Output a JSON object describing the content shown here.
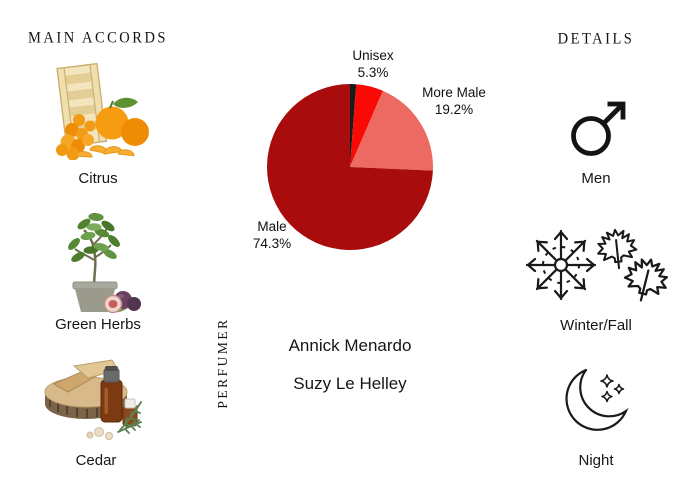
{
  "page": {
    "background": "#ffffff"
  },
  "left_panel": {
    "title": "MAIN ACCORDS",
    "accords": [
      {
        "name": "Citrus",
        "icon": "citrus-crate-mandarins-illustration"
      },
      {
        "name": "Green Herbs",
        "icon": "potted-fig-plant-illustration"
      },
      {
        "name": "Cedar",
        "icon": "cedar-wood-oil-bottle-illustration"
      }
    ]
  },
  "chart_data": {
    "type": "pie",
    "direction": "clockwise",
    "start_angle": "top",
    "legend_position": "none",
    "slices": [
      {
        "label": "",
        "value": 1.2,
        "pct_text": "",
        "color": "#1a1a1a"
      },
      {
        "label": "Unisex",
        "value": 5.3,
        "pct_text": "5.3%",
        "color": "#fa0a04"
      },
      {
        "label": "More Male",
        "value": 19.2,
        "pct_text": "19.2%",
        "color": "#ec6a62"
      },
      {
        "label": "Male",
        "value": 74.3,
        "pct_text": "74.3%",
        "color": "#a90c0c"
      }
    ]
  },
  "perfumer": {
    "heading": "PERFUMER",
    "names": [
      "Annick Menardo",
      "Suzy Le Helley"
    ]
  },
  "details": {
    "title": "DETAILS",
    "items": [
      {
        "label": "Men",
        "icon": "male-symbol-icon"
      },
      {
        "label": "Winter/Fall",
        "icon": "snowflake-maple-leaves-icon"
      },
      {
        "label": "Night",
        "icon": "crescent-moon-stars-icon"
      }
    ]
  }
}
